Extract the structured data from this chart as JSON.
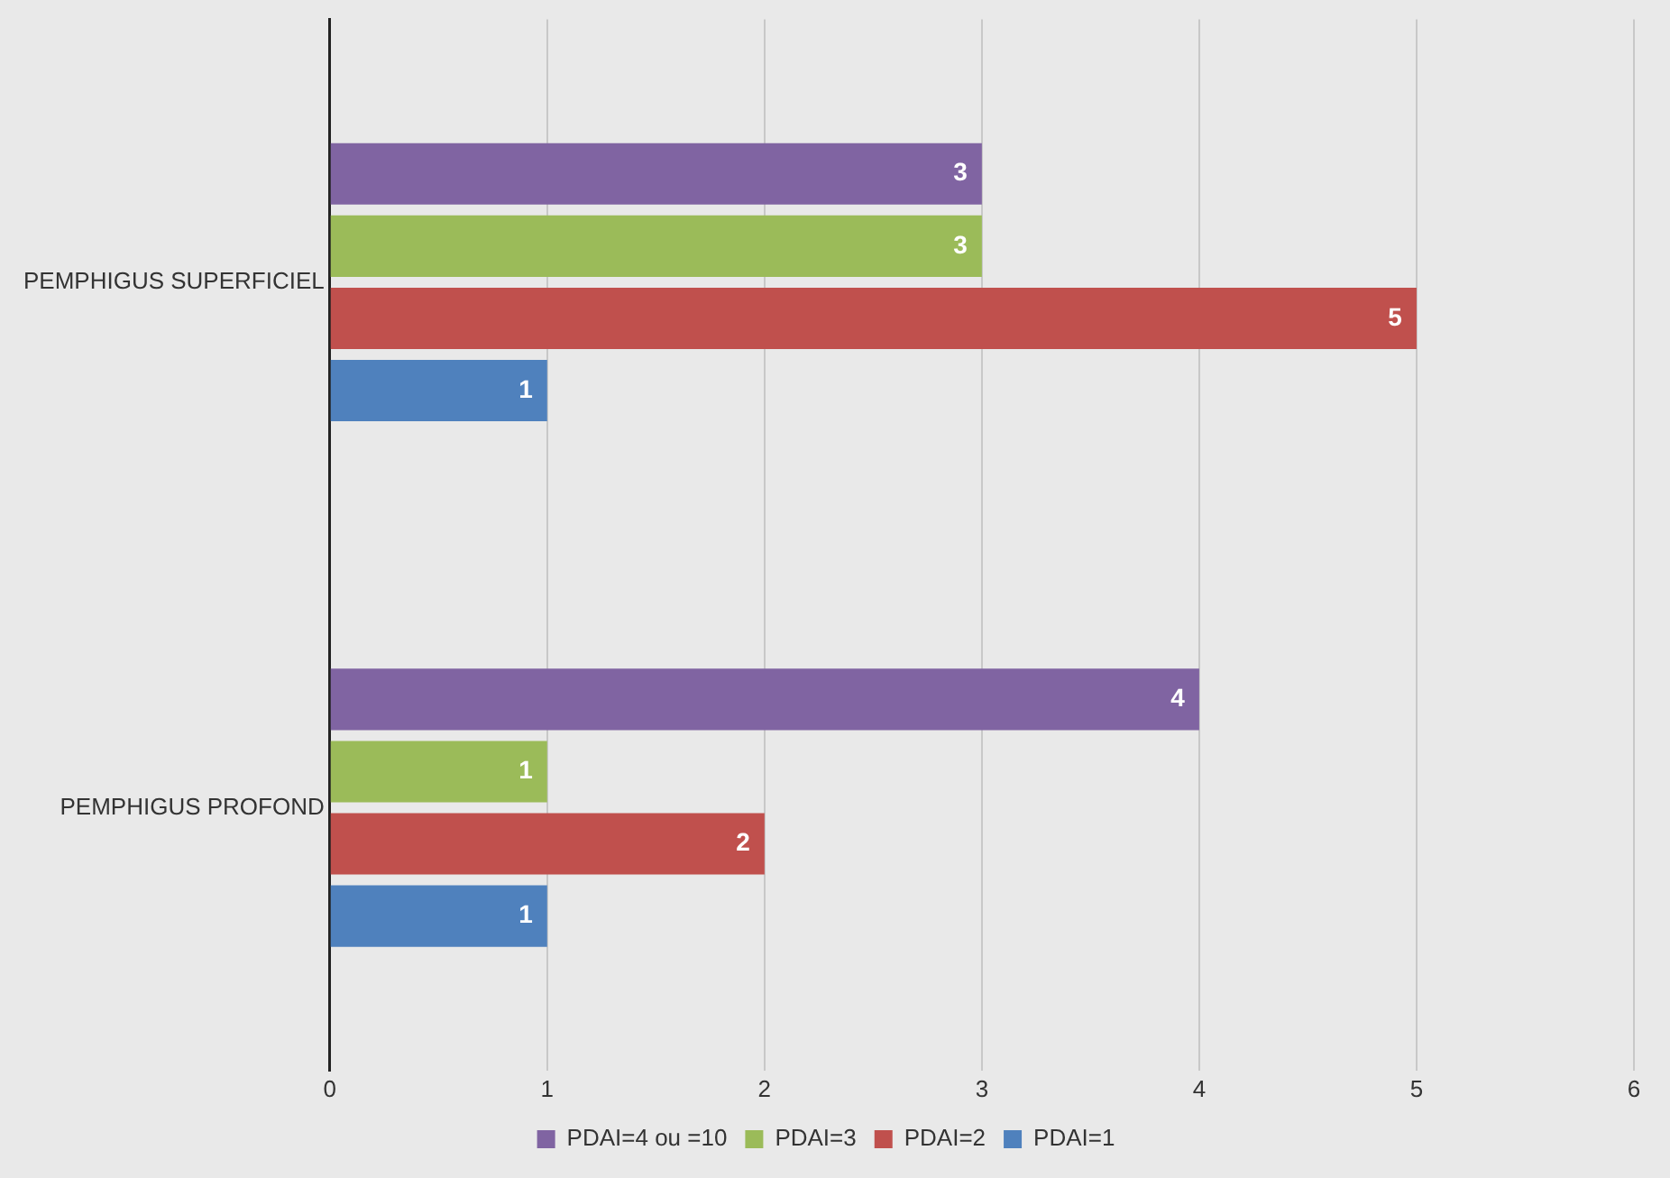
{
  "chart_data": {
    "type": "bar",
    "orientation": "horizontal",
    "categories": [
      "PEMPHIGUS SUPERFICIEL",
      "PEMPHIGUS PROFOND"
    ],
    "series": [
      {
        "name": "PDAI=4 ou =10",
        "color": "#8064a2",
        "values": [
          3,
          4
        ]
      },
      {
        "name": "PDAI=3",
        "color": "#9bbb59",
        "values": [
          3,
          1
        ]
      },
      {
        "name": "PDAI=2",
        "color": "#c0504d",
        "values": [
          5,
          2
        ]
      },
      {
        "name": "PDAI=1",
        "color": "#4f81bd",
        "values": [
          1,
          1
        ]
      }
    ],
    "xlim": [
      0,
      6
    ],
    "xticks": [
      0,
      1,
      2,
      3,
      4,
      5,
      6
    ],
    "grid": "x",
    "legend": "bottom",
    "data_labels": true
  }
}
